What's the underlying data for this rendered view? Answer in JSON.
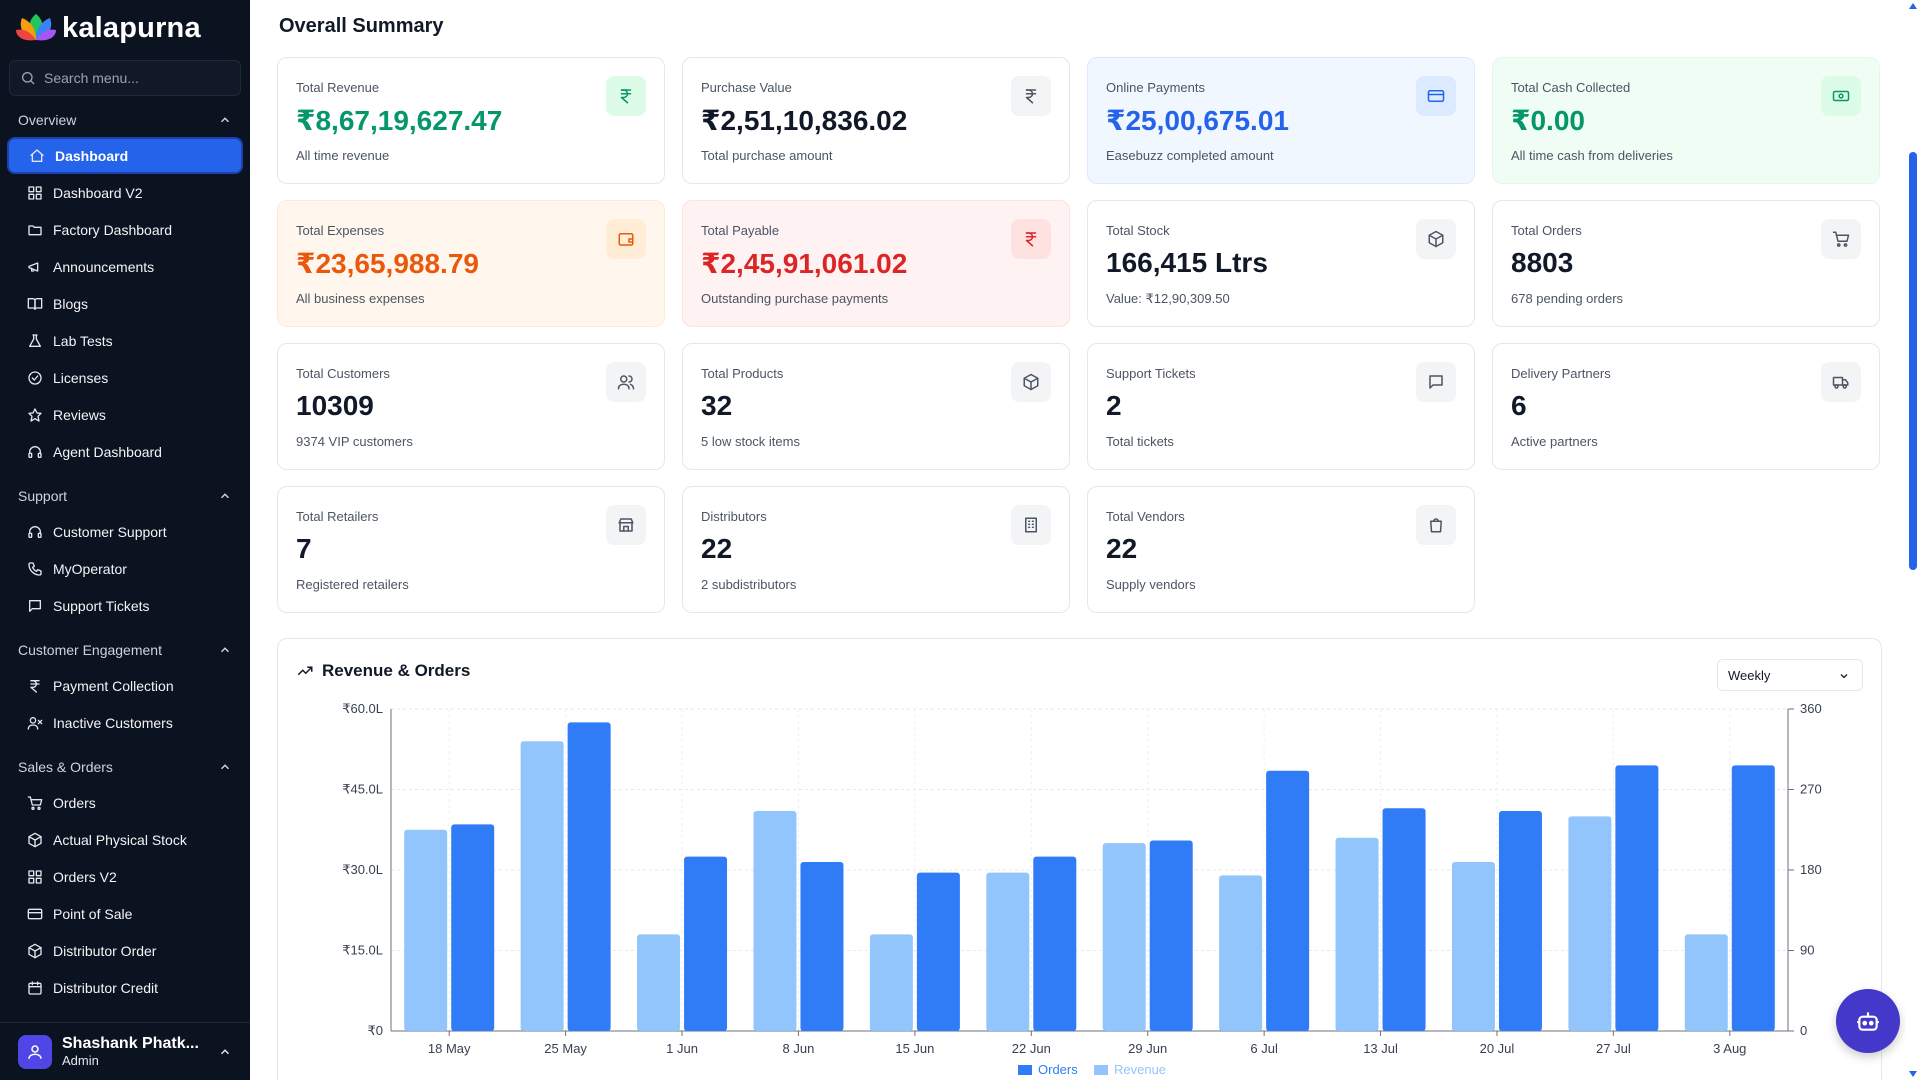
{
  "sidebar": {
    "logo_text": "kalapurna",
    "search_placeholder": "Search menu...",
    "groups": [
      {
        "label": "Overview",
        "items": [
          {
            "label": "Dashboard",
            "icon": "home-icon",
            "active": true
          },
          {
            "label": "Dashboard V2",
            "icon": "grid-icon"
          },
          {
            "label": "Factory Dashboard",
            "icon": "folder-icon"
          },
          {
            "label": "Announcements",
            "icon": "megaphone-icon"
          },
          {
            "label": "Blogs",
            "icon": "book-icon"
          },
          {
            "label": "Lab Tests",
            "icon": "flask-icon"
          },
          {
            "label": "Licenses",
            "icon": "check-circle-icon"
          },
          {
            "label": "Reviews",
            "icon": "star-icon"
          },
          {
            "label": "Agent Dashboard",
            "icon": "headset-icon"
          }
        ]
      },
      {
        "label": "Support",
        "items": [
          {
            "label": "Customer Support",
            "icon": "headset-icon"
          },
          {
            "label": "MyOperator",
            "icon": "phone-icon"
          },
          {
            "label": "Support Tickets",
            "icon": "message-square-icon"
          }
        ]
      },
      {
        "label": "Customer Engagement",
        "items": [
          {
            "label": "Payment Collection",
            "icon": "rupee-icon"
          },
          {
            "label": "Inactive Customers",
            "icon": "user-x-icon"
          }
        ]
      },
      {
        "label": "Sales & Orders",
        "items": [
          {
            "label": "Orders",
            "icon": "cart-icon"
          },
          {
            "label": "Actual Physical Stock",
            "icon": "box-icon"
          },
          {
            "label": "Orders V2",
            "icon": "grid-icon"
          },
          {
            "label": "Point of Sale",
            "icon": "credit-card-icon"
          },
          {
            "label": "Distributor Order",
            "icon": "box-icon"
          },
          {
            "label": "Distributor Credit",
            "icon": "calendar-icon"
          }
        ]
      }
    ],
    "user": {
      "name": "Shashank Phatk...",
      "role": "Admin"
    }
  },
  "main": {
    "title": "Overall Summary",
    "cards": [
      {
        "label": "Total Revenue",
        "value": "₹8,67,19,627.47",
        "sub": "All time revenue",
        "icon": "rupee-icon"
      },
      {
        "label": "Purchase Value",
        "value": "₹2,51,10,836.02",
        "sub": "Total purchase amount",
        "icon": "rupee-icon"
      },
      {
        "label": "Online Payments",
        "value": "₹25,00,675.01",
        "sub": "Easebuzz completed amount",
        "icon": "credit-card-icon"
      },
      {
        "label": "Total Cash Collected",
        "value": "₹0.00",
        "sub": "All time cash from deliveries",
        "icon": "banknote-icon"
      },
      {
        "label": "Total Expenses",
        "value": "₹23,65,988.79",
        "sub": "All business expenses",
        "icon": "wallet-icon"
      },
      {
        "label": "Total Payable",
        "value": "₹2,45,91,061.02",
        "sub": "Outstanding purchase payments",
        "icon": "rupee-icon"
      },
      {
        "label": "Total Stock",
        "value": "166,415 Ltrs",
        "sub": "Value: ₹12,90,309.50",
        "icon": "box-icon"
      },
      {
        "label": "Total Orders",
        "value": "8803",
        "sub": "678 pending orders",
        "icon": "cart-icon"
      },
      {
        "label": "Total Customers",
        "value": "10309",
        "sub": "9374 VIP customers",
        "icon": "users-icon"
      },
      {
        "label": "Total Products",
        "value": "32",
        "sub": "5 low stock items",
        "icon": "box-icon"
      },
      {
        "label": "Support Tickets",
        "value": "2",
        "sub": "Total tickets",
        "icon": "message-square-icon"
      },
      {
        "label": "Delivery Partners",
        "value": "6",
        "sub": "Active partners",
        "icon": "truck-icon"
      },
      {
        "label": "Total Retailers",
        "value": "7",
        "sub": "Registered retailers",
        "icon": "store-icon"
      },
      {
        "label": "Distributors",
        "value": "22",
        "sub": "2 subdistributors",
        "icon": "building-icon"
      },
      {
        "label": "Total Vendors",
        "value": "22",
        "sub": "Supply vendors",
        "icon": "shopping-bag-icon"
      }
    ],
    "chart_section": {
      "title": "Revenue & Orders",
      "period_selected": "Weekly"
    }
  },
  "colors": {
    "accent": "#2563eb",
    "revenue_bar": "#93c5fd",
    "orders_bar": "#2f7cf6",
    "sidebar_bg": "#0b1220"
  },
  "chart_data": {
    "type": "bar",
    "title": "Revenue & Orders",
    "categories": [
      "18 May",
      "25 May",
      "1 Jun",
      "8 Jun",
      "15 Jun",
      "22 Jun",
      "29 Jun",
      "6 Jul",
      "13 Jul",
      "20 Jul",
      "27 Jul",
      "3 Aug"
    ],
    "left_axis": {
      "ticks": [
        "₹0",
        "₹15.0L",
        "₹30.0L",
        "₹45.0L",
        "₹60.0L"
      ],
      "ylim": [
        0,
        60
      ]
    },
    "right_axis": {
      "ticks": [
        "0",
        "90",
        "180",
        "270",
        "360"
      ],
      "ylim": [
        0,
        360
      ]
    },
    "series": [
      {
        "name": "Revenue",
        "axis": "left",
        "values": [
          37.5,
          54,
          18,
          41,
          18,
          29.5,
          35,
          29,
          36,
          31.5,
          40,
          18
        ]
      },
      {
        "name": "Orders",
        "axis": "right",
        "values": [
          231,
          345,
          195,
          189,
          177,
          195,
          213,
          291,
          249,
          246,
          297,
          297
        ]
      }
    ],
    "legend": [
      "Orders",
      "Revenue"
    ],
    "legend_position": "bottom",
    "grid": true
  }
}
